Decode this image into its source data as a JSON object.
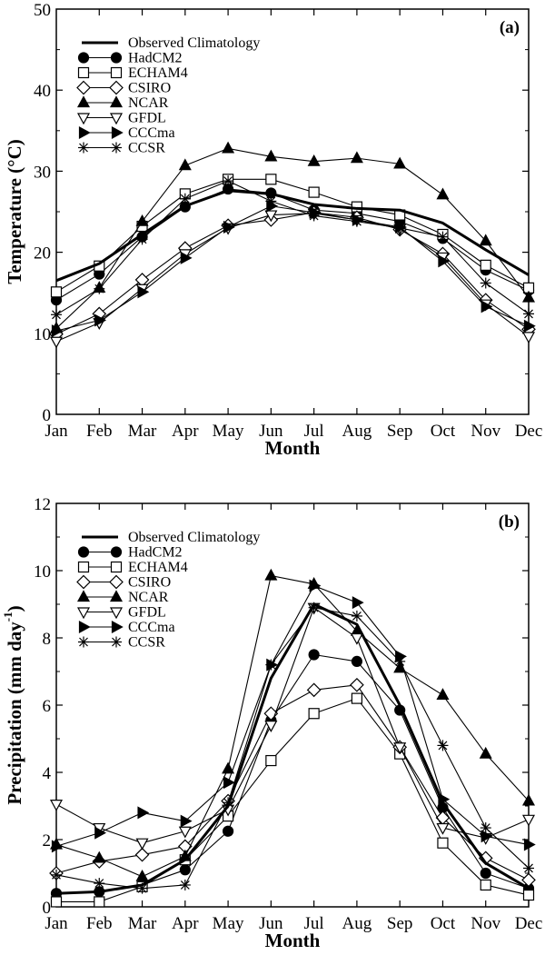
{
  "chart_data": [
    {
      "type": "line",
      "panel_tag": "(a)",
      "title": "",
      "xlabel": "Month",
      "ylabel": "Temperature (°C)",
      "categories": [
        "Jan",
        "Feb",
        "Mar",
        "Apr",
        "May",
        "Jun",
        "Jul",
        "Aug",
        "Sep",
        "Oct",
        "Nov",
        "Dec"
      ],
      "ylim": [
        0,
        50
      ],
      "yticks": [
        0,
        10,
        20,
        30,
        40,
        50
      ],
      "grid": false,
      "legend_position": "top-left",
      "series": [
        {
          "name": "Observed Climatology",
          "marker": "none",
          "values": [
            16.5,
            18.6,
            22.2,
            25.7,
            27.6,
            27.2,
            25.9,
            25.4,
            25.2,
            23.6,
            20.3,
            17.2
          ]
        },
        {
          "name": "HadCM2",
          "marker": "filled-circle",
          "values": [
            14.1,
            17.3,
            21.9,
            25.6,
            27.8,
            27.3,
            25.2,
            24.8,
            23.8,
            21.7,
            17.8,
            15.3
          ]
        },
        {
          "name": "ECHAM4",
          "marker": "open-square",
          "values": [
            15.1,
            18.3,
            23.2,
            27.2,
            29.0,
            29.0,
            27.4,
            25.6,
            24.6,
            22.2,
            18.4,
            15.6
          ]
        },
        {
          "name": "CSIRO",
          "marker": "open-diamond",
          "values": [
            9.9,
            12.4,
            16.6,
            20.5,
            23.3,
            24.0,
            24.9,
            24.3,
            22.8,
            19.8,
            14.1,
            10.5
          ]
        },
        {
          "name": "NCAR",
          "marker": "filled-triangle-up",
          "values": [
            10.6,
            15.6,
            23.8,
            30.7,
            32.8,
            31.8,
            31.2,
            31.6,
            30.9,
            27.1,
            21.4,
            14.4
          ]
        },
        {
          "name": "GFDL",
          "marker": "open-triangle-down",
          "values": [
            9.0,
            11.3,
            15.5,
            19.8,
            23.0,
            24.6,
            24.8,
            24.0,
            22.9,
            19.4,
            13.6,
            9.6
          ]
        },
        {
          "name": "CCCma",
          "marker": "filled-triangle-right",
          "values": [
            10.3,
            11.6,
            15.1,
            19.3,
            23.1,
            25.7,
            24.9,
            24.0,
            23.1,
            18.9,
            13.3,
            10.9
          ]
        },
        {
          "name": "CCSR",
          "marker": "asterisk",
          "values": [
            12.3,
            15.5,
            21.6,
            26.6,
            28.8,
            26.3,
            24.5,
            23.8,
            23.0,
            21.9,
            16.2,
            12.4
          ]
        }
      ]
    },
    {
      "type": "line",
      "panel_tag": "(b)",
      "title": "",
      "xlabel": "Month",
      "ylabel": "Precipitation (mm day",
      "ylabel_superscript": "-1",
      "ylabel_close": ")",
      "categories": [
        "Jan",
        "Feb",
        "Mar",
        "Apr",
        "May",
        "Jun",
        "Jul",
        "Aug",
        "Sep",
        "Oct",
        "Nov",
        "Dec"
      ],
      "ylim": [
        0,
        12
      ],
      "yticks": [
        0,
        2,
        4,
        6,
        8,
        10,
        12
      ],
      "grid": false,
      "legend_position": "top-left",
      "series": [
        {
          "name": "Observed Climatology",
          "marker": "none",
          "values": [
            0.4,
            0.45,
            0.65,
            1.4,
            3.0,
            6.8,
            9.0,
            8.4,
            6.0,
            3.1,
            1.3,
            0.55
          ]
        },
        {
          "name": "HadCM2",
          "marker": "filled-circle",
          "values": [
            0.4,
            0.45,
            0.65,
            1.1,
            2.25,
            5.55,
            7.5,
            7.3,
            5.85,
            2.95,
            1.0,
            0.55
          ]
        },
        {
          "name": "ECHAM4",
          "marker": "open-square",
          "values": [
            0.15,
            0.15,
            0.6,
            1.4,
            2.7,
            4.35,
            5.75,
            6.2,
            4.55,
            1.9,
            0.65,
            0.35
          ]
        },
        {
          "name": "CSIRO",
          "marker": "open-diamond",
          "values": [
            1.0,
            1.35,
            1.55,
            1.8,
            3.15,
            5.75,
            6.45,
            6.6,
            4.75,
            2.65,
            1.45,
            0.8
          ]
        },
        {
          "name": "NCAR",
          "marker": "filled-triangle-up",
          "values": [
            1.85,
            1.45,
            0.9,
            1.5,
            4.1,
            9.85,
            9.6,
            8.2,
            7.1,
            6.3,
            4.55,
            3.15
          ]
        },
        {
          "name": "GFDL",
          "marker": "open-triangle-down",
          "values": [
            3.05,
            2.35,
            1.9,
            2.25,
            2.9,
            5.4,
            8.9,
            8.0,
            4.75,
            2.35,
            2.05,
            2.6
          ]
        },
        {
          "name": "CCCma",
          "marker": "filled-triangle-right",
          "values": [
            1.8,
            2.2,
            2.8,
            2.55,
            3.7,
            7.2,
            9.55,
            9.05,
            7.45,
            3.2,
            2.1,
            1.85
          ]
        },
        {
          "name": "CCSR",
          "marker": "asterisk",
          "values": [
            0.95,
            0.7,
            0.55,
            0.65,
            3.1,
            7.2,
            8.9,
            8.65,
            7.3,
            4.8,
            2.35,
            1.15
          ]
        }
      ]
    }
  ]
}
